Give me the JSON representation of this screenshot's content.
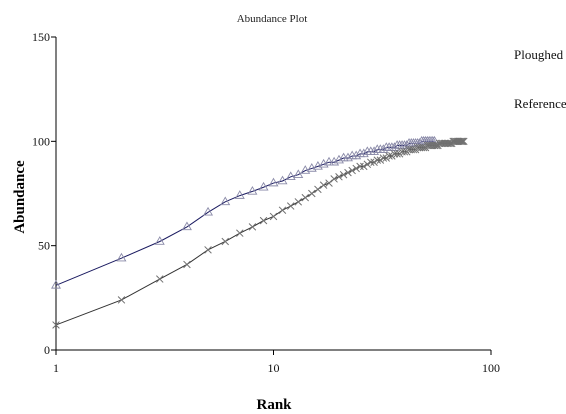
{
  "chart_data": {
    "type": "scatter",
    "title": "Abundance Plot",
    "xlabel": "Rank",
    "ylabel": "Abundance",
    "xscale": "log",
    "xlim": [
      1,
      100
    ],
    "ylim": [
      0,
      150
    ],
    "xticks": [
      1,
      10,
      100
    ],
    "yticks": [
      0,
      50,
      100,
      150
    ],
    "grid": false,
    "legend_position": "right",
    "series": [
      {
        "name": "Ploughed",
        "marker": "triangle",
        "color": "#8a8aa8",
        "line_color": "#1a1a60",
        "points": [
          [
            1,
            31
          ],
          [
            2,
            44
          ],
          [
            3,
            52
          ],
          [
            4,
            59
          ],
          [
            5,
            66
          ],
          [
            6,
            71
          ],
          [
            7,
            74
          ],
          [
            8,
            76
          ],
          [
            9,
            78
          ],
          [
            10,
            80
          ],
          [
            11,
            81
          ],
          [
            12,
            83
          ],
          [
            13,
            84
          ],
          [
            14,
            86
          ],
          [
            15,
            87
          ],
          [
            16,
            88
          ],
          [
            17,
            89
          ],
          [
            18,
            90
          ],
          [
            19,
            90
          ],
          [
            20,
            91
          ],
          [
            21,
            92
          ],
          [
            22,
            92
          ],
          [
            23,
            93
          ],
          [
            24,
            93
          ],
          [
            25,
            94
          ],
          [
            26,
            94
          ],
          [
            27,
            95
          ],
          [
            28,
            95
          ],
          [
            29,
            95
          ],
          [
            30,
            96
          ],
          [
            31,
            96
          ],
          [
            32,
            96
          ],
          [
            33,
            97
          ],
          [
            34,
            97
          ],
          [
            35,
            97
          ],
          [
            36,
            97
          ],
          [
            37,
            98
          ],
          [
            38,
            98
          ],
          [
            39,
            98
          ],
          [
            40,
            98
          ],
          [
            41,
            98
          ],
          [
            42,
            99
          ],
          [
            43,
            99
          ],
          [
            44,
            99
          ],
          [
            45,
            99
          ],
          [
            46,
            99
          ],
          [
            47,
            99
          ],
          [
            48,
            100
          ],
          [
            49,
            100
          ],
          [
            50,
            100
          ],
          [
            51,
            100
          ],
          [
            52,
            100
          ],
          [
            53,
            100
          ],
          [
            54,
            100
          ],
          [
            55,
            100
          ]
        ]
      },
      {
        "name": "Reference",
        "marker": "x",
        "color": "#707070",
        "line_color": "#333333",
        "points": [
          [
            1,
            12
          ],
          [
            2,
            24
          ],
          [
            3,
            34
          ],
          [
            4,
            41
          ],
          [
            5,
            48
          ],
          [
            6,
            52
          ],
          [
            7,
            56
          ],
          [
            8,
            59
          ],
          [
            9,
            62
          ],
          [
            10,
            64
          ],
          [
            11,
            67
          ],
          [
            12,
            69
          ],
          [
            13,
            71
          ],
          [
            14,
            73
          ],
          [
            15,
            75
          ],
          [
            16,
            77
          ],
          [
            17,
            79
          ],
          [
            18,
            80
          ],
          [
            19,
            82
          ],
          [
            20,
            83
          ],
          [
            21,
            84
          ],
          [
            22,
            85
          ],
          [
            23,
            86
          ],
          [
            24,
            87
          ],
          [
            25,
            88
          ],
          [
            26,
            88
          ],
          [
            27,
            89
          ],
          [
            28,
            90
          ],
          [
            29,
            90
          ],
          [
            30,
            91
          ],
          [
            31,
            91
          ],
          [
            32,
            92
          ],
          [
            33,
            92
          ],
          [
            34,
            93
          ],
          [
            35,
            93
          ],
          [
            36,
            94
          ],
          [
            37,
            94
          ],
          [
            38,
            94
          ],
          [
            39,
            95
          ],
          [
            40,
            95
          ],
          [
            41,
            95
          ],
          [
            42,
            96
          ],
          [
            43,
            96
          ],
          [
            44,
            96
          ],
          [
            45,
            96
          ],
          [
            46,
            97
          ],
          [
            47,
            97
          ],
          [
            48,
            97
          ],
          [
            49,
            97
          ],
          [
            50,
            97
          ],
          [
            51,
            98
          ],
          [
            52,
            98
          ],
          [
            53,
            98
          ],
          [
            54,
            98
          ],
          [
            55,
            98
          ],
          [
            56,
            98
          ],
          [
            57,
            98
          ],
          [
            58,
            99
          ],
          [
            59,
            99
          ],
          [
            60,
            99
          ],
          [
            61,
            99
          ],
          [
            62,
            99
          ],
          [
            63,
            99
          ],
          [
            64,
            99
          ],
          [
            65,
            99
          ],
          [
            66,
            99
          ],
          [
            67,
            100
          ],
          [
            68,
            100
          ],
          [
            69,
            100
          ],
          [
            70,
            100
          ],
          [
            71,
            100
          ],
          [
            72,
            100
          ],
          [
            73,
            100
          ],
          [
            74,
            100
          ],
          [
            75,
            100
          ]
        ]
      }
    ]
  }
}
